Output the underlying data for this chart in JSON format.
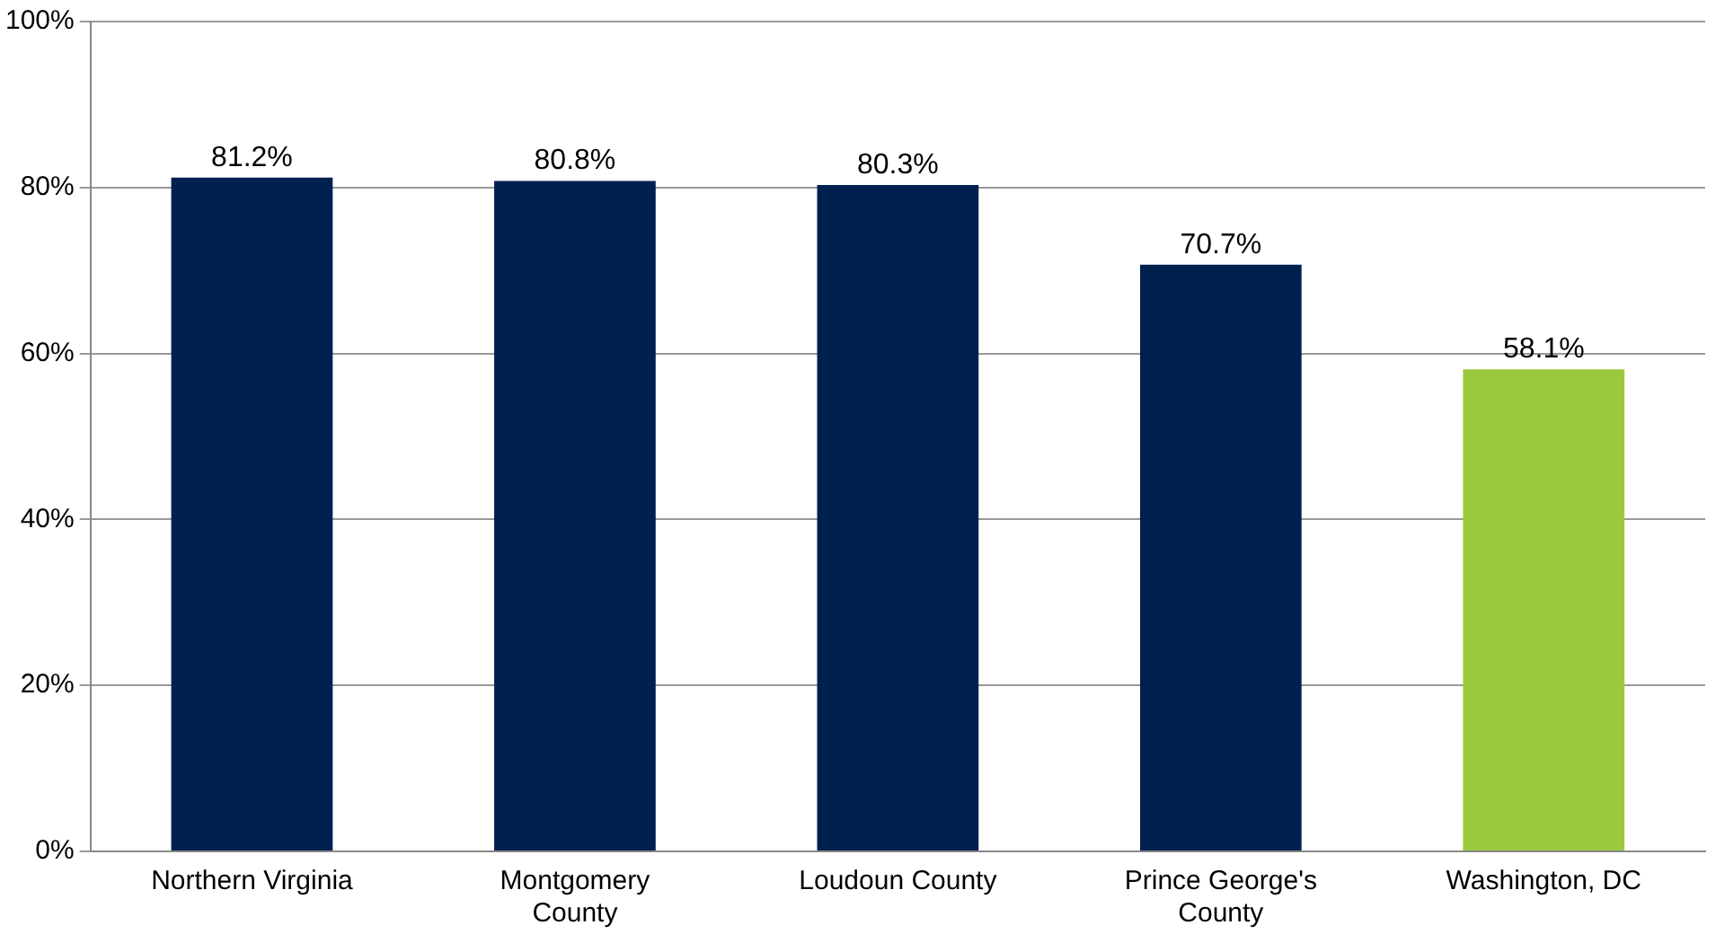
{
  "chart_data": {
    "type": "bar",
    "categories": [
      "Northern Virginia",
      "Montgomery County",
      "Loudoun County",
      "Prince George's County",
      "Washington, DC"
    ],
    "values": [
      81.2,
      80.8,
      80.3,
      70.7,
      58.1
    ],
    "colors": [
      "#002050",
      "#002050",
      "#002050",
      "#002050",
      "#9bc83c"
    ],
    "value_labels": [
      "81.2%",
      "80.8%",
      "80.3%",
      "70.7%",
      "58.1%"
    ],
    "ylim": [
      0,
      100
    ],
    "yticks": [
      {
        "value": 0,
        "label": "0%"
      },
      {
        "value": 20,
        "label": "20%"
      },
      {
        "value": 40,
        "label": "40%"
      },
      {
        "value": 60,
        "label": "60%"
      },
      {
        "value": 80,
        "label": "80%"
      },
      {
        "value": 100,
        "label": "100%"
      }
    ],
    "grid": "y",
    "legend": false
  }
}
